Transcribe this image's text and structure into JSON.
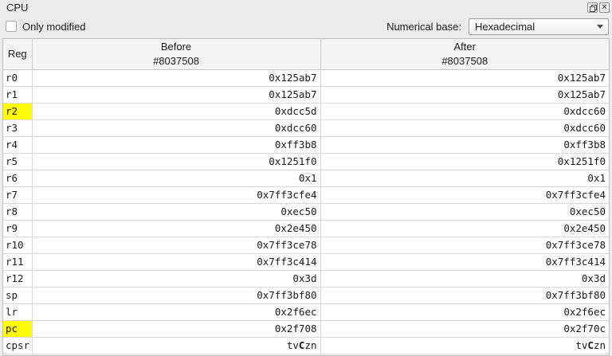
{
  "window": {
    "title": "CPU"
  },
  "toolbar": {
    "only_modified_label": "Only modified",
    "only_modified_checked": false,
    "numerical_base_label": "Numerical base:",
    "numerical_base_value": "Hexadecimal"
  },
  "table": {
    "headers": {
      "reg": "Reg",
      "before_title": "Before",
      "before_subtitle": "#8037508",
      "after_title": "After",
      "after_subtitle": "#8037508"
    },
    "rows": [
      {
        "reg": "r0",
        "before": "0x125ab7",
        "after": "0x125ab7",
        "highlight": false,
        "flags": false
      },
      {
        "reg": "r1",
        "before": "0x125ab7",
        "after": "0x125ab7",
        "highlight": false,
        "flags": false
      },
      {
        "reg": "r2",
        "before": "0xdcc5d",
        "after": "0xdcc60",
        "highlight": true,
        "flags": false
      },
      {
        "reg": "r3",
        "before": "0xdcc60",
        "after": "0xdcc60",
        "highlight": false,
        "flags": false
      },
      {
        "reg": "r4",
        "before": "0xff3b8",
        "after": "0xff3b8",
        "highlight": false,
        "flags": false
      },
      {
        "reg": "r5",
        "before": "0x1251f0",
        "after": "0x1251f0",
        "highlight": false,
        "flags": false
      },
      {
        "reg": "r6",
        "before": "0x1",
        "after": "0x1",
        "highlight": false,
        "flags": false
      },
      {
        "reg": "r7",
        "before": "0x7ff3cfe4",
        "after": "0x7ff3cfe4",
        "highlight": false,
        "flags": false
      },
      {
        "reg": "r8",
        "before": "0xec50",
        "after": "0xec50",
        "highlight": false,
        "flags": false
      },
      {
        "reg": "r9",
        "before": "0x2e450",
        "after": "0x2e450",
        "highlight": false,
        "flags": false
      },
      {
        "reg": "r10",
        "before": "0x7ff3ce78",
        "after": "0x7ff3ce78",
        "highlight": false,
        "flags": false
      },
      {
        "reg": "r11",
        "before": "0x7ff3c414",
        "after": "0x7ff3c414",
        "highlight": false,
        "flags": false
      },
      {
        "reg": "r12",
        "before": "0x3d",
        "after": "0x3d",
        "highlight": false,
        "flags": false
      },
      {
        "reg": "sp",
        "before": "0x7ff3bf80",
        "after": "0x7ff3bf80",
        "highlight": false,
        "flags": false
      },
      {
        "reg": "lr",
        "before": "0x2f6ec",
        "after": "0x2f6ec",
        "highlight": false,
        "flags": false
      },
      {
        "reg": "pc",
        "before": "0x2f708",
        "after": "0x2f70c",
        "highlight": true,
        "flags": false
      },
      {
        "reg": "cpsr",
        "before": "tvCzn",
        "after": "tvCzn",
        "highlight": false,
        "flags": true
      }
    ]
  },
  "colors": {
    "highlight": "#ffff00"
  }
}
